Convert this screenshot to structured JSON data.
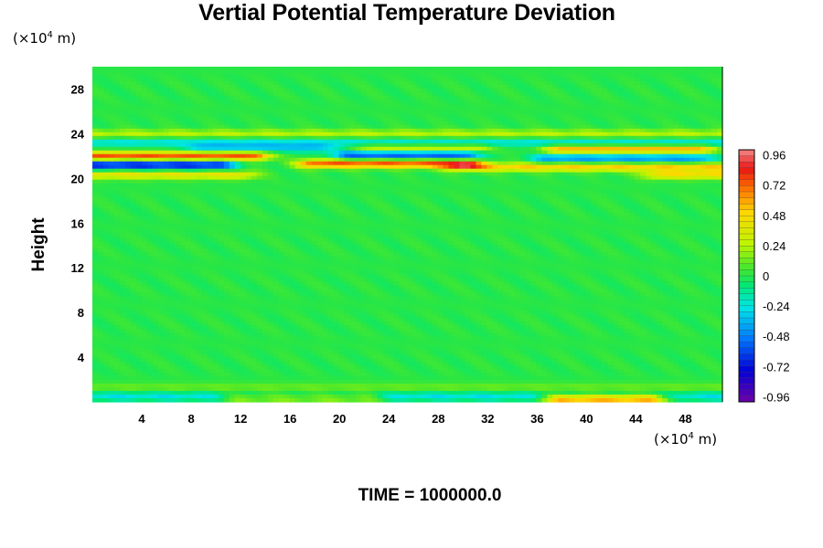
{
  "chart_data": {
    "type": "heatmap",
    "title": "Vertial Potential Temperature Deviation",
    "ylabel": "Height",
    "xlabel": "",
    "x_unit": {
      "prefix": "(×10",
      "exp": "4",
      "suffix": " m)"
    },
    "y_unit": {
      "prefix": "(×10",
      "exp": "4",
      "suffix": " m)"
    },
    "footer": "TIME = 1000000.0",
    "xlim": [
      0,
      51
    ],
    "ylim": [
      0,
      30
    ],
    "xticks": [
      4,
      8,
      12,
      16,
      20,
      24,
      28,
      32,
      36,
      40,
      44,
      48
    ],
    "yticks": [
      4,
      8,
      12,
      16,
      20,
      24,
      28
    ],
    "colorbar": {
      "range": [
        -1.0,
        1.0
      ],
      "labels": [
        "0.96",
        "0.72",
        "0.48",
        "0.24",
        "0",
        "-0.24",
        "-0.48",
        "-0.72",
        "-0.96"
      ],
      "label_values": [
        0.96,
        0.72,
        0.48,
        0.24,
        0,
        -0.24,
        -0.48,
        -0.72,
        -0.96
      ]
    },
    "background_value": 0.0,
    "features": [
      {
        "x0": 0,
        "x1": 13,
        "y": 22.0,
        "value": 0.75
      },
      {
        "x0": 0,
        "x1": 10,
        "y": 21.2,
        "value": -0.75
      },
      {
        "x0": 0,
        "x1": 12,
        "y": 20.3,
        "value": 0.4
      },
      {
        "x0": 0,
        "x1": 51,
        "y": 23.2,
        "value": -0.25
      },
      {
        "x0": 9,
        "x1": 20,
        "y": 22.7,
        "value": -0.3
      },
      {
        "x0": 0,
        "x1": 51,
        "y": 24.0,
        "value": 0.25
      },
      {
        "x0": 18,
        "x1": 30,
        "y": 21.3,
        "value": 0.75
      },
      {
        "x0": 21,
        "x1": 30,
        "y": 22.1,
        "value": -0.6
      },
      {
        "x0": 21,
        "x1": 31,
        "y": 22.7,
        "value": 0.35
      },
      {
        "x0": 30,
        "x1": 51,
        "y": 21.0,
        "value": 0.5
      },
      {
        "x0": 37,
        "x1": 49,
        "y": 21.8,
        "value": -0.45
      },
      {
        "x0": 38,
        "x1": 49,
        "y": 22.6,
        "value": 0.6
      },
      {
        "x0": 46,
        "x1": 51,
        "y": 20.3,
        "value": 0.45
      },
      {
        "x0": 0,
        "x1": 51,
        "y": 0.5,
        "value": -0.25
      },
      {
        "x0": 12,
        "x1": 22,
        "y": 0.4,
        "value": 0.35
      },
      {
        "x0": 38,
        "x1": 45,
        "y": 0.3,
        "value": 0.75
      },
      {
        "x0": 0,
        "x1": 51,
        "y": 1.3,
        "value": 0.12
      }
    ]
  }
}
